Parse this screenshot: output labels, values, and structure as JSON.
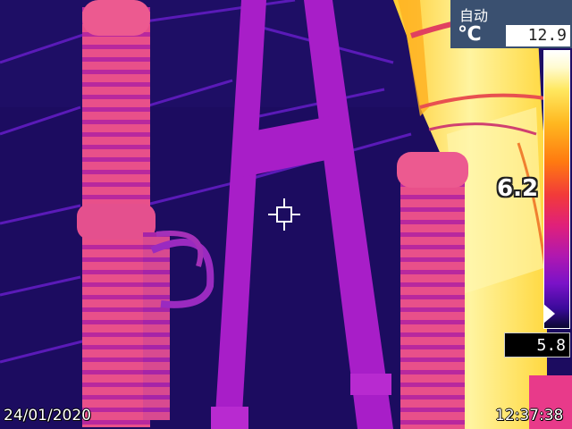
{
  "header": {
    "mode": "自动",
    "unit": "℃"
  },
  "temperature_scale": {
    "max": "12.9",
    "min": "5.8"
  },
  "spot_measurement": {
    "value": "6.2"
  },
  "footer": {
    "date": "24/01/2020",
    "time": "12:37:38"
  },
  "palette": {
    "background": "#1a0a5e",
    "cold": "#7010c8",
    "warm": "#e04080",
    "hot": "#ffe860"
  },
  "icons": [
    "crosshair-icon",
    "scale-pointer-icon"
  ]
}
